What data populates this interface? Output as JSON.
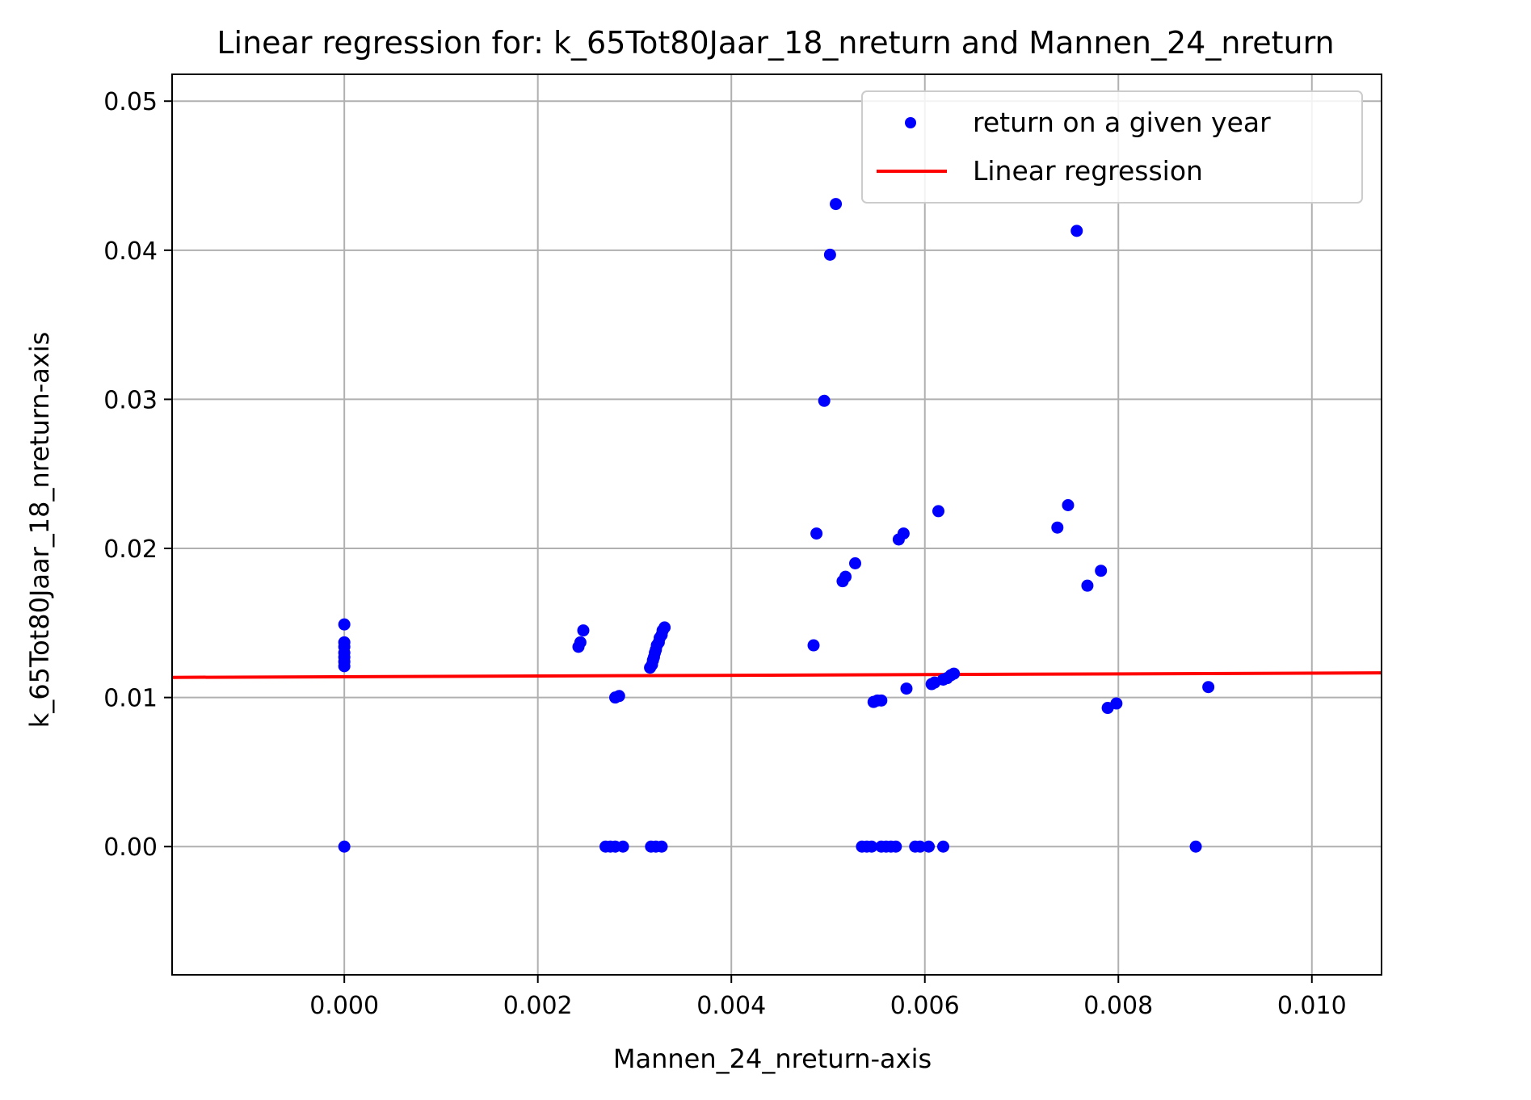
{
  "chart_data": {
    "type": "scatter",
    "title": "Linear regression for: k_65Tot80Jaar_18_nreturn and Mannen_24_nreturn",
    "xlabel": "Mannen_24_nreturn-axis",
    "ylabel": "k_65Tot80Jaar_18_nreturn-axis",
    "xlim": [
      -0.00178,
      0.01072
    ],
    "ylim": [
      -0.0086,
      0.0518
    ],
    "xticks": [
      "0.000",
      "0.002",
      "0.004",
      "0.006",
      "0.008",
      "0.010"
    ],
    "xtick_values": [
      0,
      0.002,
      0.004,
      0.006,
      0.008,
      0.01
    ],
    "yticks": [
      "0.00",
      "0.01",
      "0.02",
      "0.03",
      "0.04",
      "0.05"
    ],
    "ytick_values": [
      0,
      0.01,
      0.02,
      0.03,
      0.04,
      0.05
    ],
    "grid": true,
    "legend_position": "top-right",
    "colors": {
      "points": "#0000ff",
      "line": "#ff0000"
    },
    "series": [
      {
        "name": "return on a given year",
        "kind": "scatter",
        "points": [
          [
            0.0,
            0.0149
          ],
          [
            0.0,
            0.0137
          ],
          [
            0.0,
            0.0134
          ],
          [
            0.0,
            0.013
          ],
          [
            0.0,
            0.0127
          ],
          [
            0.0,
            0.0124
          ],
          [
            0.0,
            0.0121
          ],
          [
            0.0,
            0.0
          ],
          [
            0.00242,
            0.0134
          ],
          [
            0.00244,
            0.0137
          ],
          [
            0.00247,
            0.0145
          ],
          [
            0.0028,
            0.01
          ],
          [
            0.00284,
            0.0101
          ],
          [
            0.0027,
            0.0
          ],
          [
            0.00275,
            0.0
          ],
          [
            0.0028,
            0.0
          ],
          [
            0.00288,
            0.0
          ],
          [
            0.00316,
            0.012
          ],
          [
            0.00318,
            0.0122
          ],
          [
            0.00319,
            0.0125
          ],
          [
            0.0032,
            0.0127
          ],
          [
            0.00321,
            0.013
          ],
          [
            0.00322,
            0.0132
          ],
          [
            0.00323,
            0.0135
          ],
          [
            0.00325,
            0.0137
          ],
          [
            0.00326,
            0.014
          ],
          [
            0.00328,
            0.0142
          ],
          [
            0.00329,
            0.0145
          ],
          [
            0.00331,
            0.0147
          ],
          [
            0.00317,
            0.0
          ],
          [
            0.00322,
            0.0
          ],
          [
            0.00328,
            0.0
          ],
          [
            0.00485,
            0.0135
          ],
          [
            0.00488,
            0.021
          ],
          [
            0.00496,
            0.0299
          ],
          [
            0.00502,
            0.0397
          ],
          [
            0.00508,
            0.0431
          ],
          [
            0.00515,
            0.0178
          ],
          [
            0.00518,
            0.0181
          ],
          [
            0.00528,
            0.019
          ],
          [
            0.00535,
            0.0
          ],
          [
            0.0054,
            0.0
          ],
          [
            0.00545,
            0.0
          ],
          [
            0.00547,
            0.0097
          ],
          [
            0.00551,
            0.0098
          ],
          [
            0.00555,
            0.0098
          ],
          [
            0.00555,
            0.0
          ],
          [
            0.0056,
            0.0
          ],
          [
            0.00565,
            0.0
          ],
          [
            0.0057,
            0.0
          ],
          [
            0.00573,
            0.0206
          ],
          [
            0.00578,
            0.021
          ],
          [
            0.00581,
            0.0106
          ],
          [
            0.0059,
            0.0
          ],
          [
            0.00595,
            0.0
          ],
          [
            0.00604,
            0.0
          ],
          [
            0.00619,
            0.0
          ],
          [
            0.00607,
            0.0109
          ],
          [
            0.0061,
            0.011
          ],
          [
            0.00614,
            0.0225
          ],
          [
            0.00619,
            0.0112
          ],
          [
            0.00623,
            0.0113
          ],
          [
            0.00627,
            0.0115
          ],
          [
            0.0063,
            0.0116
          ],
          [
            0.00737,
            0.0214
          ],
          [
            0.00748,
            0.0229
          ],
          [
            0.00757,
            0.0413
          ],
          [
            0.00768,
            0.0175
          ],
          [
            0.00782,
            0.0185
          ],
          [
            0.00789,
            0.0093
          ],
          [
            0.00798,
            0.0096
          ],
          [
            0.0088,
            0.0
          ],
          [
            0.00893,
            0.0107
          ]
        ]
      },
      {
        "name": "Linear regression",
        "kind": "line",
        "x": [
          -0.00178,
          0.01072
        ],
        "y": [
          0.01135,
          0.01165
        ]
      }
    ]
  }
}
